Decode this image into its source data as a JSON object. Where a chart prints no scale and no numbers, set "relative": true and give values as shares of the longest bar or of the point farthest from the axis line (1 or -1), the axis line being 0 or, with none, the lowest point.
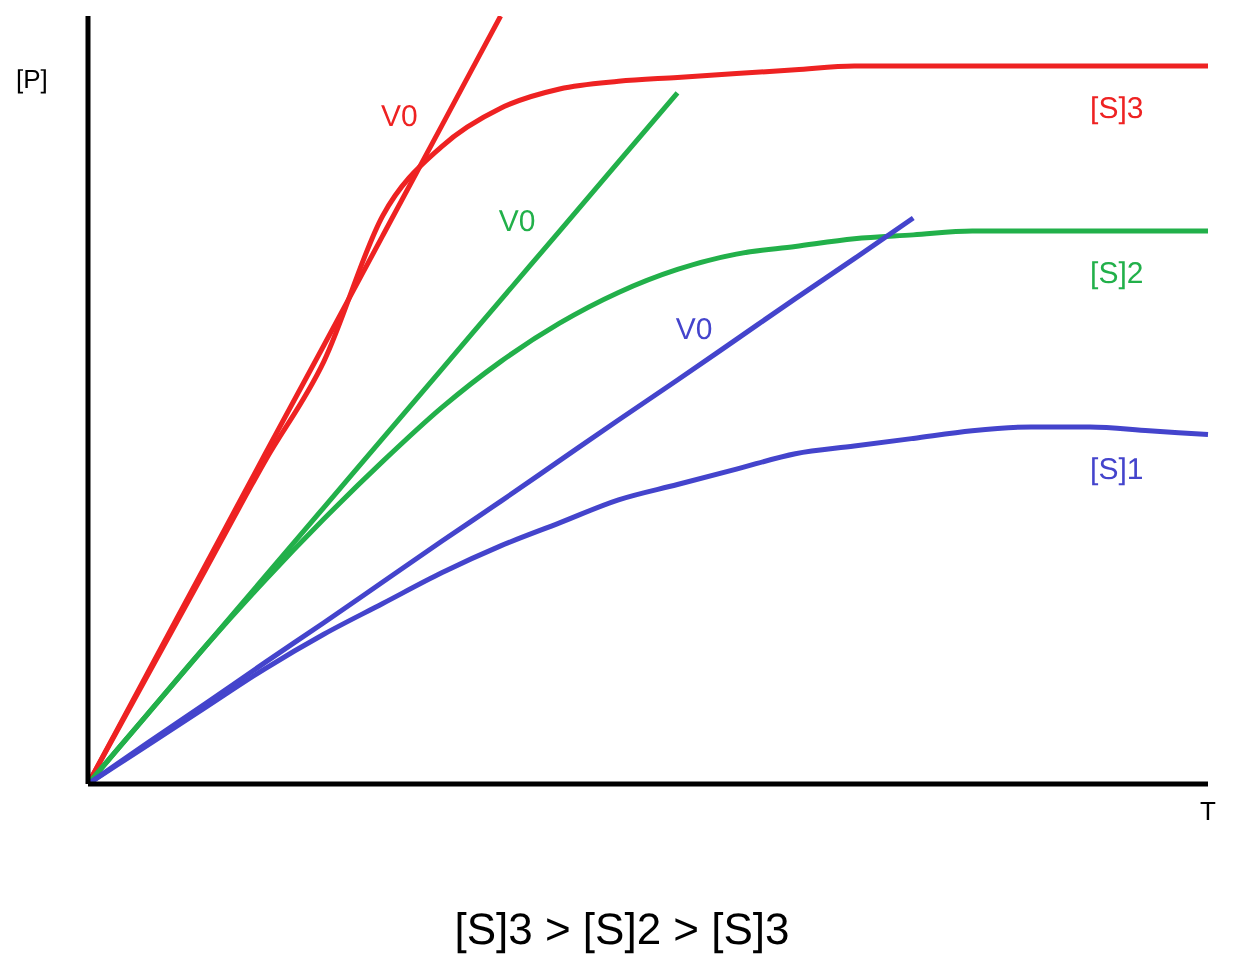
{
  "chart_data": {
    "type": "line",
    "relative": true,
    "xlabel": "T",
    "ylabel": "[P]",
    "annotations": [
      "[S]3 > [S]2 > [S]3"
    ],
    "grid": false,
    "legend": false,
    "marker": "none",
    "line_style": "solid",
    "categories": [
      null,
      null,
      null,
      null,
      null,
      null,
      null,
      null,
      null,
      null,
      null,
      null,
      null,
      null,
      null,
      null,
      null,
      null,
      null,
      null
    ],
    "series": [
      {
        "name": "V0",
        "color": "#ee2222",
        "values": [
          0,
          0.143,
          0.286,
          0.429,
          0.571,
          0.714,
          0.857,
          1,
          null,
          null,
          null,
          null,
          null,
          null,
          null,
          null,
          null,
          null,
          null,
          null
        ]
      },
      {
        "name": "[S]3",
        "color": "#ee2222",
        "values": [
          0,
          0.14,
          0.28,
          0.42,
          0.55,
          0.74,
          0.83,
          0.88,
          0.905,
          0.915,
          0.92,
          0.925,
          0.93,
          0.935,
          0.935,
          0.935,
          0.935,
          0.935,
          0.935,
          0.935
        ]
      },
      {
        "name": "V0",
        "color": "#22b04a",
        "values": [
          0,
          0.09,
          0.18,
          0.27,
          0.36,
          0.45,
          0.54,
          0.63,
          0.72,
          0.81,
          0.9,
          null,
          null,
          null,
          null,
          null,
          null,
          null,
          null,
          null
        ]
      },
      {
        "name": "[S]2",
        "color": "#22b04a",
        "values": [
          0,
          0.09,
          0.18,
          0.265,
          0.345,
          0.42,
          0.49,
          0.55,
          0.6,
          0.64,
          0.67,
          0.69,
          0.7,
          0.71,
          0.715,
          0.72,
          0.72,
          0.72,
          0.72,
          0.72
        ]
      },
      {
        "name": "V0",
        "color": "#4444cc",
        "values": [
          0,
          0.053,
          0.105,
          0.158,
          0.21,
          0.263,
          0.316,
          0.368,
          0.421,
          0.474,
          0.526,
          0.579,
          0.632,
          0.684,
          0.737,
          null,
          null,
          null,
          null,
          null
        ]
      },
      {
        "name": "[S]1",
        "color": "#4444cc",
        "values": [
          0,
          0.05,
          0.1,
          0.15,
          0.195,
          0.235,
          0.275,
          0.31,
          0.34,
          0.37,
          0.39,
          0.41,
          0.43,
          0.44,
          0.45,
          0.46,
          0.465,
          0.465,
          0.46,
          0.455
        ]
      }
    ]
  }
}
